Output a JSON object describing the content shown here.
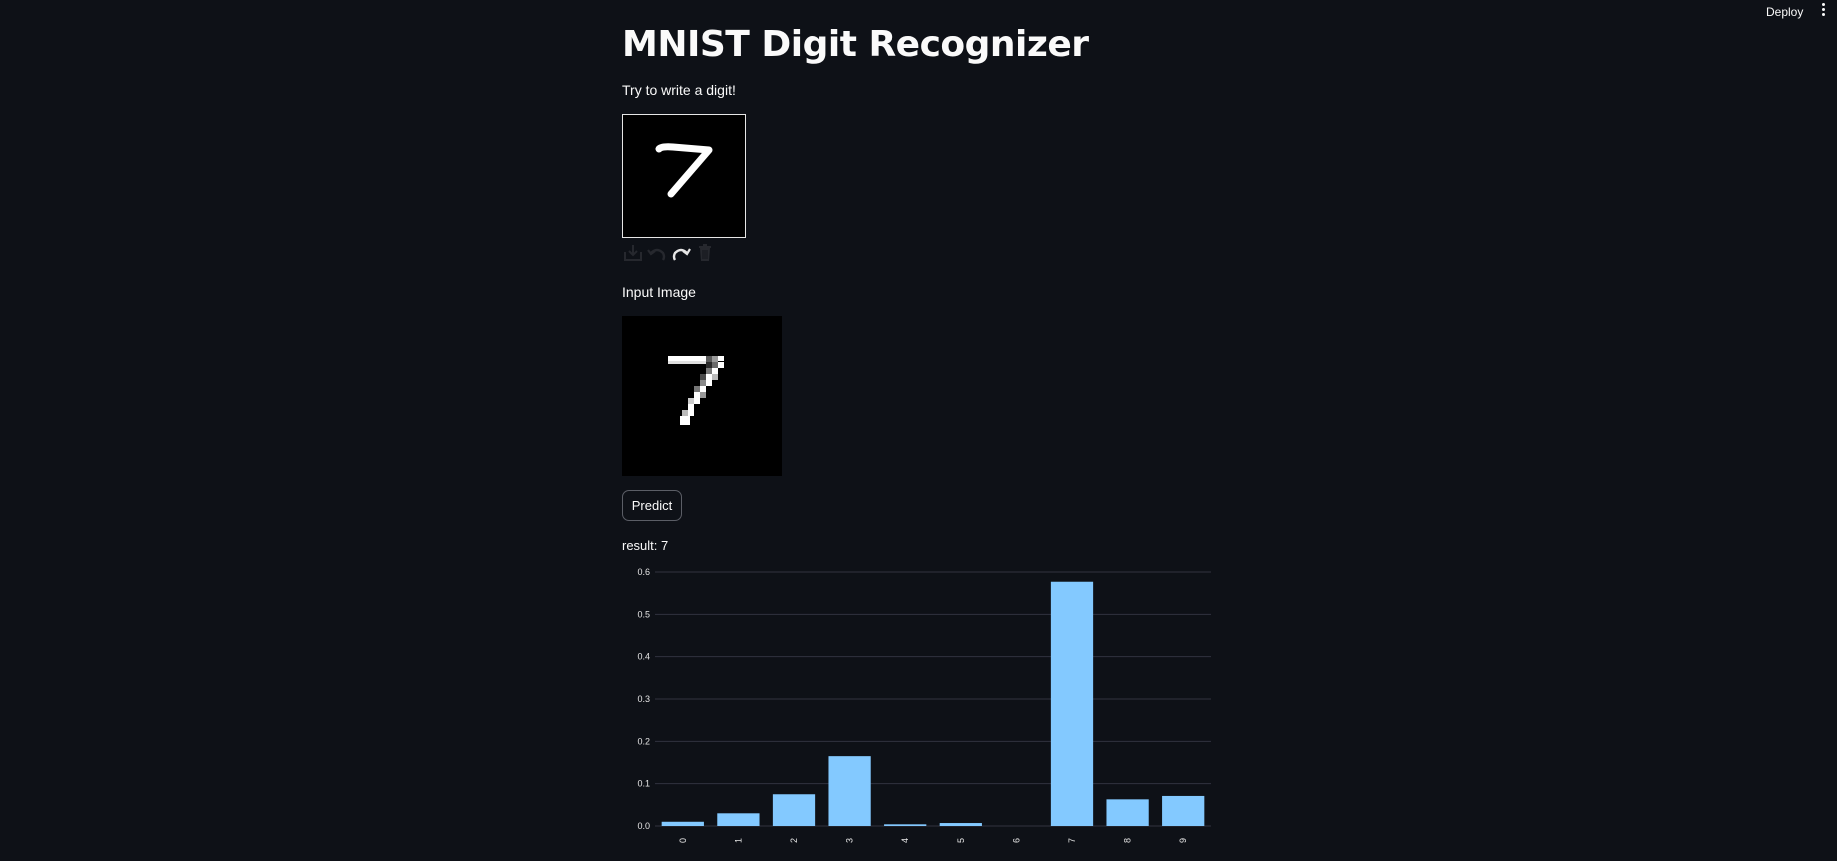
{
  "header": {
    "deploy_label": "Deploy",
    "menu_icon": "vertical-dots-icon"
  },
  "page": {
    "title": "MNIST Digit Recognizer",
    "subtitle": "Try to write a digit!",
    "input_label": "Input Image",
    "predict_label": "Predict",
    "result_text": "result: 7"
  },
  "canvas_toolbar": {
    "icons": [
      "download-icon",
      "undo-icon",
      "redo-icon",
      "trash-icon"
    ]
  },
  "colors": {
    "background": "#0e1117",
    "text": "#fafafa",
    "bar": "#83c9ff",
    "grid": "#31333f"
  },
  "chart_data": {
    "type": "bar",
    "categories": [
      "0",
      "1",
      "2",
      "3",
      "4",
      "5",
      "6",
      "7",
      "8",
      "9"
    ],
    "values": [
      0.01,
      0.03,
      0.075,
      0.165,
      0.004,
      0.007,
      0.0,
      0.577,
      0.063,
      0.071
    ],
    "yticks": [
      "0.0",
      "0.1",
      "0.2",
      "0.3",
      "0.4",
      "0.5",
      "0.6"
    ],
    "ylim": [
      0,
      0.6
    ],
    "title": "",
    "xlabel": "",
    "ylabel": "",
    "grid": true,
    "legend": "none"
  }
}
